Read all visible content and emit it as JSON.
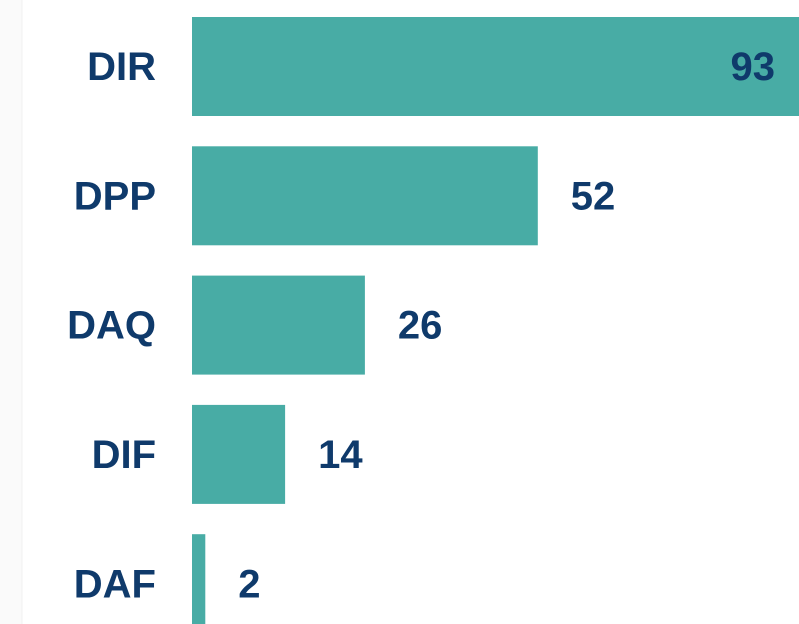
{
  "chart_data": {
    "type": "bar",
    "orientation": "horizontal",
    "categories": [
      "DIR",
      "DPP",
      "DAQ",
      "DIF",
      "DAF"
    ],
    "values": [
      93,
      52,
      26,
      14,
      2
    ],
    "color": "#48aca5"
  }
}
